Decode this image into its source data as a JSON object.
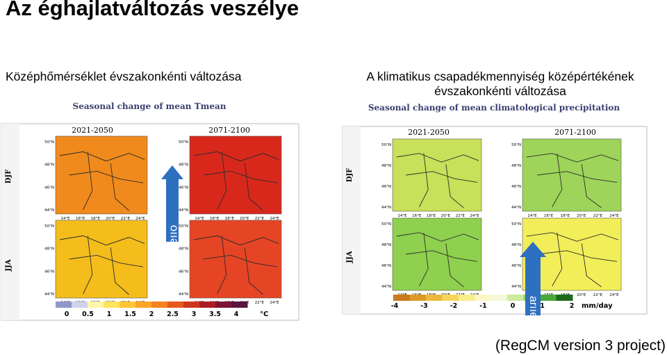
{
  "slide": {
    "title": "Az éghajlatváltozás veszélye",
    "source": "(RegCM version 3 project)"
  },
  "left_panel": {
    "caption": "Középhőmérséklet évszakonkénti változása",
    "figure_title": "Seasonal change of mean Tmean",
    "periods": [
      "2021-2050",
      "2071-2100"
    ],
    "seasons": [
      "DJF",
      "JJA"
    ],
    "lat_labels": [
      "50°N",
      "48°N",
      "46°N",
      "44°N"
    ],
    "lon_labels": [
      "14°E",
      "16°E",
      "18°E",
      "20°E",
      "22°E",
      "24°E"
    ],
    "colorbar_ticks": [
      "0",
      "0.5",
      "1",
      "1.5",
      "2",
      "2.5",
      "3",
      "3.5",
      "4"
    ],
    "unit": "°C",
    "arrow_text": "eııo",
    "colors": {
      "map_djf_2021": "#f08a1c",
      "map_djf_2071": "#d8281c",
      "map_jja_2021": "#f4bd1c",
      "map_jja_2071": "#e54524",
      "arrow": "#2f6fbf"
    }
  },
  "right_panel": {
    "caption": "A klimatikus csapadékmennyiség középértékének évszakonkénti változása",
    "figure_title": "Seasonal change of mean climatological precipitation",
    "periods": [
      "2021-2050",
      "2071-2100"
    ],
    "seasons": [
      "DJF",
      "JJA"
    ],
    "lat_labels": [
      "50°N",
      "48°N",
      "46°N",
      "44°N"
    ],
    "lon_labels": [
      "14°E",
      "16°E",
      "18°E",
      "20°E",
      "22°E",
      "24°E"
    ],
    "colorbar_ticks": [
      "-4",
      "-3",
      "-2",
      "-1",
      "0",
      "1",
      "2"
    ],
    "unit": "mm/day",
    "arrow_text": "əııɹɐ",
    "colors": {
      "map_djf_2021": "#c8e05a",
      "map_djf_2071": "#9ed45a",
      "map_jja_2021": "#8fd04f",
      "map_jja_2071": "#f2ee5a",
      "arrow": "#2f6fbf"
    }
  }
}
